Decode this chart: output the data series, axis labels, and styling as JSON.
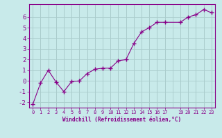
{
  "x": [
    0,
    1,
    2,
    3,
    4,
    5,
    6,
    7,
    8,
    9,
    10,
    11,
    12,
    13,
    14,
    15,
    16,
    17,
    19,
    20,
    21,
    22,
    23
  ],
  "y": [
    -2.2,
    -0.2,
    1.0,
    -0.1,
    -1.0,
    -0.05,
    0.0,
    0.7,
    1.1,
    1.2,
    1.2,
    1.9,
    2.0,
    3.5,
    4.6,
    5.0,
    5.5,
    5.5,
    5.5,
    6.0,
    6.2,
    6.7,
    6.4
  ],
  "line_color": "#880088",
  "marker": "+",
  "background_color": "#c8eaea",
  "grid_color": "#aacccc",
  "xlabel": "Windchill (Refroidissement éolien,°C)",
  "tick_color": "#880088",
  "xlim": [
    -0.5,
    23.5
  ],
  "ylim": [
    -2.5,
    7.2
  ],
  "yticks": [
    -2,
    -1,
    0,
    1,
    2,
    3,
    4,
    5,
    6
  ],
  "xtick_positions": [
    0,
    1,
    2,
    3,
    4,
    5,
    6,
    7,
    8,
    9,
    10,
    11,
    12,
    13,
    14,
    15,
    16,
    17,
    19,
    20,
    21,
    22,
    23
  ],
  "xtick_labels": [
    "0",
    "1",
    "2",
    "3",
    "4",
    "5",
    "6",
    "7",
    "8",
    "9",
    "10",
    "11",
    "12",
    "13",
    "14",
    "15",
    "16",
    "17",
    "19",
    "20",
    "21",
    "22",
    "23"
  ]
}
